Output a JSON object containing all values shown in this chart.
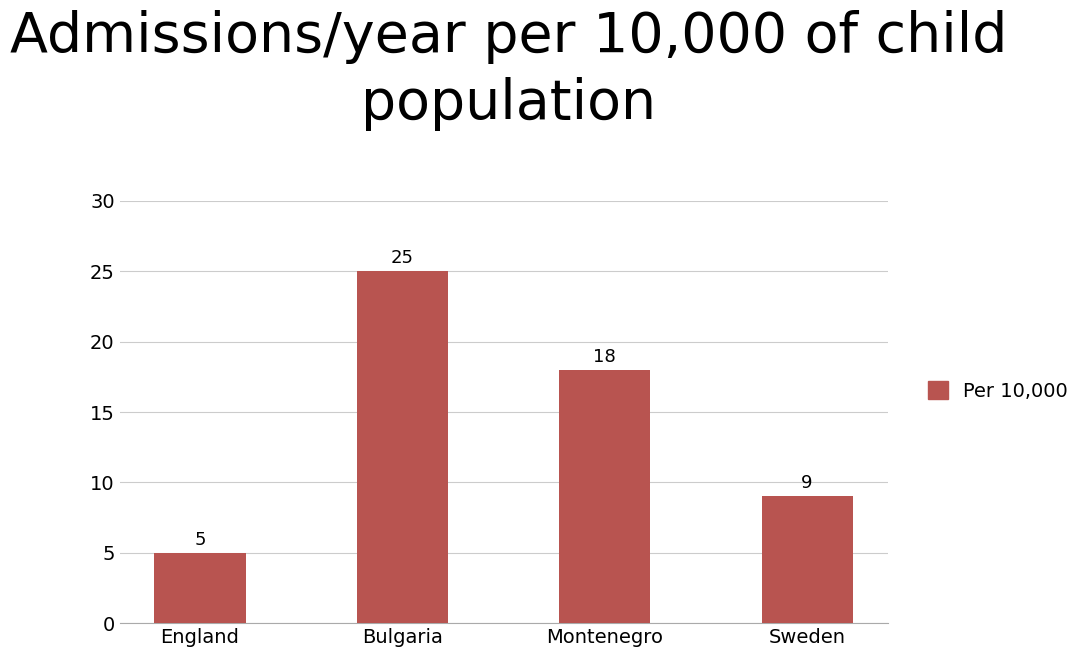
{
  "title": "Admissions/year per 10,000 of child\npopulation",
  "categories": [
    "England",
    "Bulgaria",
    "Montenegro",
    "Sweden"
  ],
  "values": [
    5,
    25,
    18,
    9
  ],
  "bar_color": "#b85450",
  "legend_label": "Per 10,000",
  "ylim": [
    0,
    30
  ],
  "yticks": [
    0,
    5,
    10,
    15,
    20,
    25,
    30
  ],
  "title_fontsize": 40,
  "tick_fontsize": 14,
  "value_label_fontsize": 13,
  "background_color": "#ffffff",
  "bar_width": 0.45
}
